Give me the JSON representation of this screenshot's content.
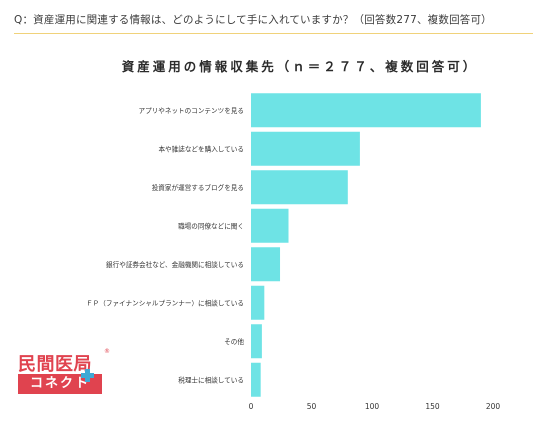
{
  "question": "Q：資産運用に関連する情報は、どのようにして手に入れていますか？（回答数277、複数回答可）",
  "logo": {
    "top_text": "民間医局",
    "bottom_text": "コネクト",
    "reg_mark": "®"
  },
  "colors": {
    "bar": "#6ee3e5",
    "rule": "#f0d27a",
    "logo": "#e0434f"
  },
  "chart_data": {
    "type": "bar",
    "orientation": "horizontal",
    "title": "資産運用の情報収集先（ｎ＝２７７、複数回答可）",
    "categories": [
      "アプリやネットのコンテンツを見る",
      "本や雑誌などを購入している",
      "投資家が運営するブログを見る",
      "職場の同僚などに聞く",
      "銀行や証券会社など、金融機関に相談している",
      "ＦＰ（ファイナンシャルプランナー）に相談している",
      "その他",
      "税理士に相談している"
    ],
    "values": [
      190,
      90,
      80,
      31,
      24,
      11,
      9,
      8
    ],
    "xlim": [
      0,
      200
    ],
    "xticks": [
      "0",
      "50",
      "100",
      "150",
      "200"
    ],
    "grid": false
  }
}
